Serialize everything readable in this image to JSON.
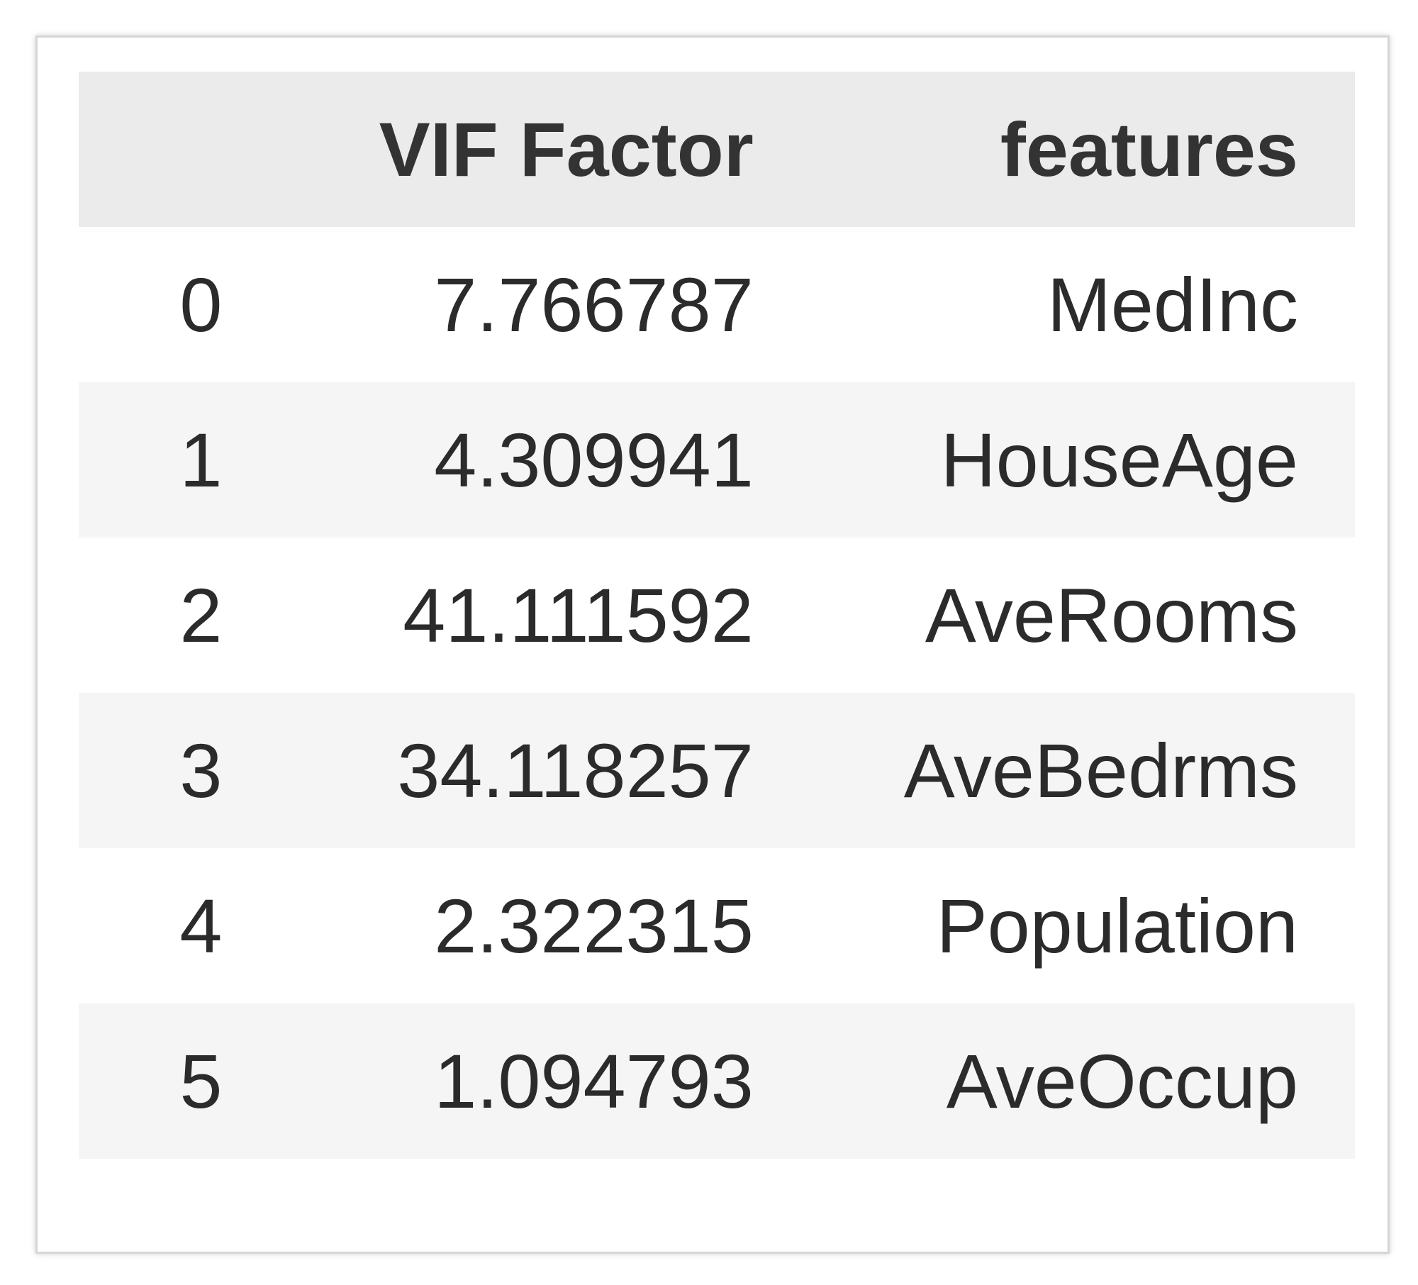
{
  "table": {
    "columns": [
      "",
      "VIF Factor",
      "features"
    ],
    "rows": [
      {
        "index": "0",
        "vif": "7.766787",
        "feature": "MedInc"
      },
      {
        "index": "1",
        "vif": "4.309941",
        "feature": "HouseAge"
      },
      {
        "index": "2",
        "vif": "41.111592",
        "feature": "AveRooms"
      },
      {
        "index": "3",
        "vif": "34.118257",
        "feature": "AveBedrms"
      },
      {
        "index": "4",
        "vif": "2.322315",
        "feature": "Population"
      },
      {
        "index": "5",
        "vif": "1.094793",
        "feature": "AveOccup"
      }
    ]
  },
  "colors": {
    "header_bg": "#ebebeb",
    "stripe_bg": "#f5f5f5",
    "text": "#2b2b2b",
    "border": "#d6d6d6"
  }
}
